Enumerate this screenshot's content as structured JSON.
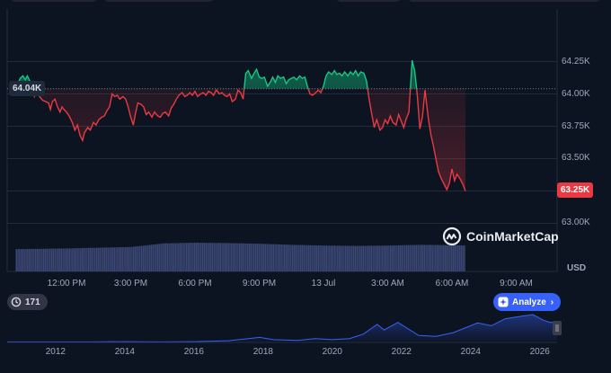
{
  "chart_data": {
    "type": "line",
    "currency": "USD",
    "reference_value": 64040,
    "reference_label": "64.04K",
    "last_value": 63250,
    "last_label": "63.25K",
    "ylim": [
      62920,
      64330
    ],
    "y_ticks": [
      {
        "value": 64250,
        "label": "64.25K"
      },
      {
        "value": 64000,
        "label": "64.00K"
      },
      {
        "value": 63750,
        "label": "63.75K"
      },
      {
        "value": 63500,
        "label": "63.50K"
      },
      {
        "value": 63250,
        "label": "63.25K"
      },
      {
        "value": 63000,
        "label": "63.00K"
      }
    ],
    "x_ticks": [
      {
        "t": 0,
        "label": "12:00 PM"
      },
      {
        "t": 1,
        "label": "3:00 PM"
      },
      {
        "t": 2,
        "label": "6:00 PM"
      },
      {
        "t": 3,
        "label": "9:00 PM"
      },
      {
        "t": 4,
        "label": "13 Jul"
      },
      {
        "t": 5,
        "label": "3:00 AM"
      },
      {
        "t": 6,
        "label": "6:00 AM"
      },
      {
        "t": 7,
        "label": "9:00 AM"
      }
    ],
    "price": [
      [
        -0.79,
        64040
      ],
      [
        -0.72,
        64120
      ],
      [
        -0.68,
        64140
      ],
      [
        -0.64,
        64110
      ],
      [
        -0.61,
        64140
      ],
      [
        -0.57,
        64100
      ],
      [
        -0.53,
        64040
      ],
      [
        -0.5,
        63980
      ],
      [
        -0.47,
        64010
      ],
      [
        -0.42,
        63980
      ],
      [
        -0.37,
        63950
      ],
      [
        -0.32,
        63940
      ],
      [
        -0.28,
        63930
      ],
      [
        -0.25,
        63880
      ],
      [
        -0.22,
        63940
      ],
      [
        -0.18,
        63960
      ],
      [
        -0.14,
        63900
      ],
      [
        -0.1,
        63860
      ],
      [
        -0.07,
        63900
      ],
      [
        -0.04,
        63880
      ],
      [
        0.0,
        63860
      ],
      [
        0.04,
        63830
      ],
      [
        0.09,
        63780
      ],
      [
        0.13,
        63720
      ],
      [
        0.17,
        63760
      ],
      [
        0.21,
        63680
      ],
      [
        0.25,
        63640
      ],
      [
        0.28,
        63700
      ],
      [
        0.33,
        63740
      ],
      [
        0.37,
        63720
      ],
      [
        0.42,
        63780
      ],
      [
        0.46,
        63760
      ],
      [
        0.5,
        63800
      ],
      [
        0.55,
        63820
      ],
      [
        0.59,
        63830
      ],
      [
        0.63,
        63870
      ],
      [
        0.67,
        63900
      ],
      [
        0.71,
        64000
      ],
      [
        0.75,
        63980
      ],
      [
        0.79,
        63990
      ],
      [
        0.83,
        63960
      ],
      [
        0.88,
        63980
      ],
      [
        0.92,
        63960
      ],
      [
        0.96,
        63900
      ],
      [
        1.0,
        63820
      ],
      [
        1.04,
        63760
      ],
      [
        1.07,
        63840
      ],
      [
        1.11,
        63930
      ],
      [
        1.16,
        63920
      ],
      [
        1.2,
        63900
      ],
      [
        1.24,
        63840
      ],
      [
        1.28,
        63860
      ],
      [
        1.33,
        63820
      ],
      [
        1.37,
        63860
      ],
      [
        1.42,
        63830
      ],
      [
        1.46,
        63820
      ],
      [
        1.5,
        63850
      ],
      [
        1.54,
        63860
      ],
      [
        1.59,
        63830
      ],
      [
        1.63,
        63890
      ],
      [
        1.67,
        63920
      ],
      [
        1.71,
        63960
      ],
      [
        1.75,
        63990
      ],
      [
        1.8,
        64010
      ],
      [
        1.84,
        63980
      ],
      [
        1.88,
        63990
      ],
      [
        1.92,
        64010
      ],
      [
        1.96,
        63990
      ],
      [
        2.0,
        64020
      ],
      [
        2.04,
        63980
      ],
      [
        2.09,
        64000
      ],
      [
        2.13,
        64010
      ],
      [
        2.17,
        63990
      ],
      [
        2.21,
        64020
      ],
      [
        2.25,
        64010
      ],
      [
        2.29,
        63990
      ],
      [
        2.33,
        64030
      ],
      [
        2.38,
        64000
      ],
      [
        2.42,
        64010
      ],
      [
        2.46,
        63990
      ],
      [
        2.5,
        63980
      ],
      [
        2.54,
        64000
      ],
      [
        2.58,
        63940
      ],
      [
        2.63,
        63960
      ],
      [
        2.67,
        64030
      ],
      [
        2.71,
        64010
      ],
      [
        2.75,
        63960
      ],
      [
        2.79,
        64160
      ],
      [
        2.83,
        64180
      ],
      [
        2.88,
        64120
      ],
      [
        2.92,
        64160
      ],
      [
        2.96,
        64190
      ],
      [
        3.0,
        64130
      ],
      [
        3.04,
        64120
      ],
      [
        3.08,
        64130
      ],
      [
        3.13,
        64060
      ],
      [
        3.17,
        64090
      ],
      [
        3.21,
        64130
      ],
      [
        3.25,
        64090
      ],
      [
        3.29,
        64140
      ],
      [
        3.33,
        64120
      ],
      [
        3.38,
        64130
      ],
      [
        3.42,
        64080
      ],
      [
        3.46,
        64110
      ],
      [
        3.5,
        64120
      ],
      [
        3.54,
        64130
      ],
      [
        3.58,
        64110
      ],
      [
        3.63,
        64140
      ],
      [
        3.67,
        64120
      ],
      [
        3.71,
        64130
      ],
      [
        3.75,
        64060
      ],
      [
        3.79,
        64000
      ],
      [
        3.83,
        63990
      ],
      [
        3.88,
        64010
      ],
      [
        3.92,
        64030
      ],
      [
        3.96,
        64010
      ],
      [
        4.0,
        64060
      ],
      [
        4.04,
        64140
      ],
      [
        4.08,
        64170
      ],
      [
        4.13,
        64150
      ],
      [
        4.17,
        64180
      ],
      [
        4.21,
        64150
      ],
      [
        4.25,
        64160
      ],
      [
        4.29,
        64140
      ],
      [
        4.33,
        64170
      ],
      [
        4.38,
        64140
      ],
      [
        4.42,
        64170
      ],
      [
        4.46,
        64150
      ],
      [
        4.5,
        64180
      ],
      [
        4.54,
        64140
      ],
      [
        4.58,
        64170
      ],
      [
        4.63,
        64160
      ],
      [
        4.67,
        64100
      ],
      [
        4.71,
        63960
      ],
      [
        4.75,
        63850
      ],
      [
        4.79,
        63740
      ],
      [
        4.83,
        63800
      ],
      [
        4.88,
        63720
      ],
      [
        4.92,
        63740
      ],
      [
        4.96,
        63800
      ],
      [
        5.0,
        63770
      ],
      [
        5.04,
        63830
      ],
      [
        5.08,
        63780
      ],
      [
        5.13,
        63760
      ],
      [
        5.17,
        63840
      ],
      [
        5.21,
        63790
      ],
      [
        5.25,
        63740
      ],
      [
        5.29,
        63810
      ],
      [
        5.33,
        63860
      ],
      [
        5.38,
        64260
      ],
      [
        5.42,
        64180
      ],
      [
        5.46,
        63990
      ],
      [
        5.5,
        63730
      ],
      [
        5.54,
        63820
      ],
      [
        5.58,
        64030
      ],
      [
        5.63,
        63820
      ],
      [
        5.67,
        63690
      ],
      [
        5.71,
        63600
      ],
      [
        5.75,
        63500
      ],
      [
        5.79,
        63400
      ],
      [
        5.83,
        63350
      ],
      [
        5.88,
        63300
      ],
      [
        5.92,
        63260
      ],
      [
        5.96,
        63310
      ],
      [
        6.0,
        63420
      ],
      [
        6.04,
        63330
      ],
      [
        6.08,
        63380
      ],
      [
        6.13,
        63340
      ],
      [
        6.17,
        63300
      ],
      [
        6.21,
        63250
      ]
    ],
    "volume_scale": [
      0,
      1
    ],
    "volume": [
      [
        -0.79,
        0.62
      ],
      [
        0.0,
        0.64
      ],
      [
        1.0,
        0.68
      ],
      [
        1.5,
        0.78
      ],
      [
        2.0,
        0.8
      ],
      [
        2.5,
        0.79
      ],
      [
        3.0,
        0.77
      ],
      [
        3.5,
        0.74
      ],
      [
        4.0,
        0.72
      ],
      [
        4.5,
        0.71
      ],
      [
        5.0,
        0.72
      ],
      [
        5.5,
        0.74
      ],
      [
        6.0,
        0.73
      ],
      [
        6.21,
        0.72
      ]
    ],
    "history_xlim": [
      2010.6,
      2026.5
    ],
    "history_x_ticks": [
      2012,
      2014,
      2016,
      2018,
      2020,
      2022,
      2024,
      2026
    ],
    "history": [
      [
        2010.6,
        0.02
      ],
      [
        2012,
        0.02
      ],
      [
        2013,
        0.02
      ],
      [
        2014,
        0.03
      ],
      [
        2015,
        0.02
      ],
      [
        2016,
        0.03
      ],
      [
        2017,
        0.06
      ],
      [
        2017.9,
        0.18
      ],
      [
        2018.3,
        0.1
      ],
      [
        2019,
        0.07
      ],
      [
        2019.5,
        0.14
      ],
      [
        2020,
        0.1
      ],
      [
        2020.5,
        0.14
      ],
      [
        2020.9,
        0.3
      ],
      [
        2021.3,
        0.65
      ],
      [
        2021.5,
        0.45
      ],
      [
        2021.9,
        0.72
      ],
      [
        2022.5,
        0.25
      ],
      [
        2023,
        0.22
      ],
      [
        2023.5,
        0.35
      ],
      [
        2024.2,
        0.7
      ],
      [
        2024.6,
        0.6
      ],
      [
        2025,
        0.85
      ],
      [
        2025.5,
        0.95
      ],
      [
        2025.8,
        1.0
      ],
      [
        2026.1,
        0.8
      ],
      [
        2026.3,
        0.72
      ],
      [
        2026.5,
        0.74
      ]
    ],
    "grid": true
  },
  "brand": {
    "name": "CoinMarketCap"
  },
  "events_badge": {
    "count": "171"
  },
  "analyze_button": {
    "label": "Analyze"
  },
  "colors": {
    "up": "#16c784",
    "down": "#ea3943",
    "background": "#0d1421",
    "grid": "#222b3b",
    "volume": "#3b4774",
    "accent": "#3861fb"
  },
  "icons": {
    "events": "clock-history-icon",
    "analyze": "sparkle-icon",
    "brand": "coinmarketcap-logo-icon"
  }
}
